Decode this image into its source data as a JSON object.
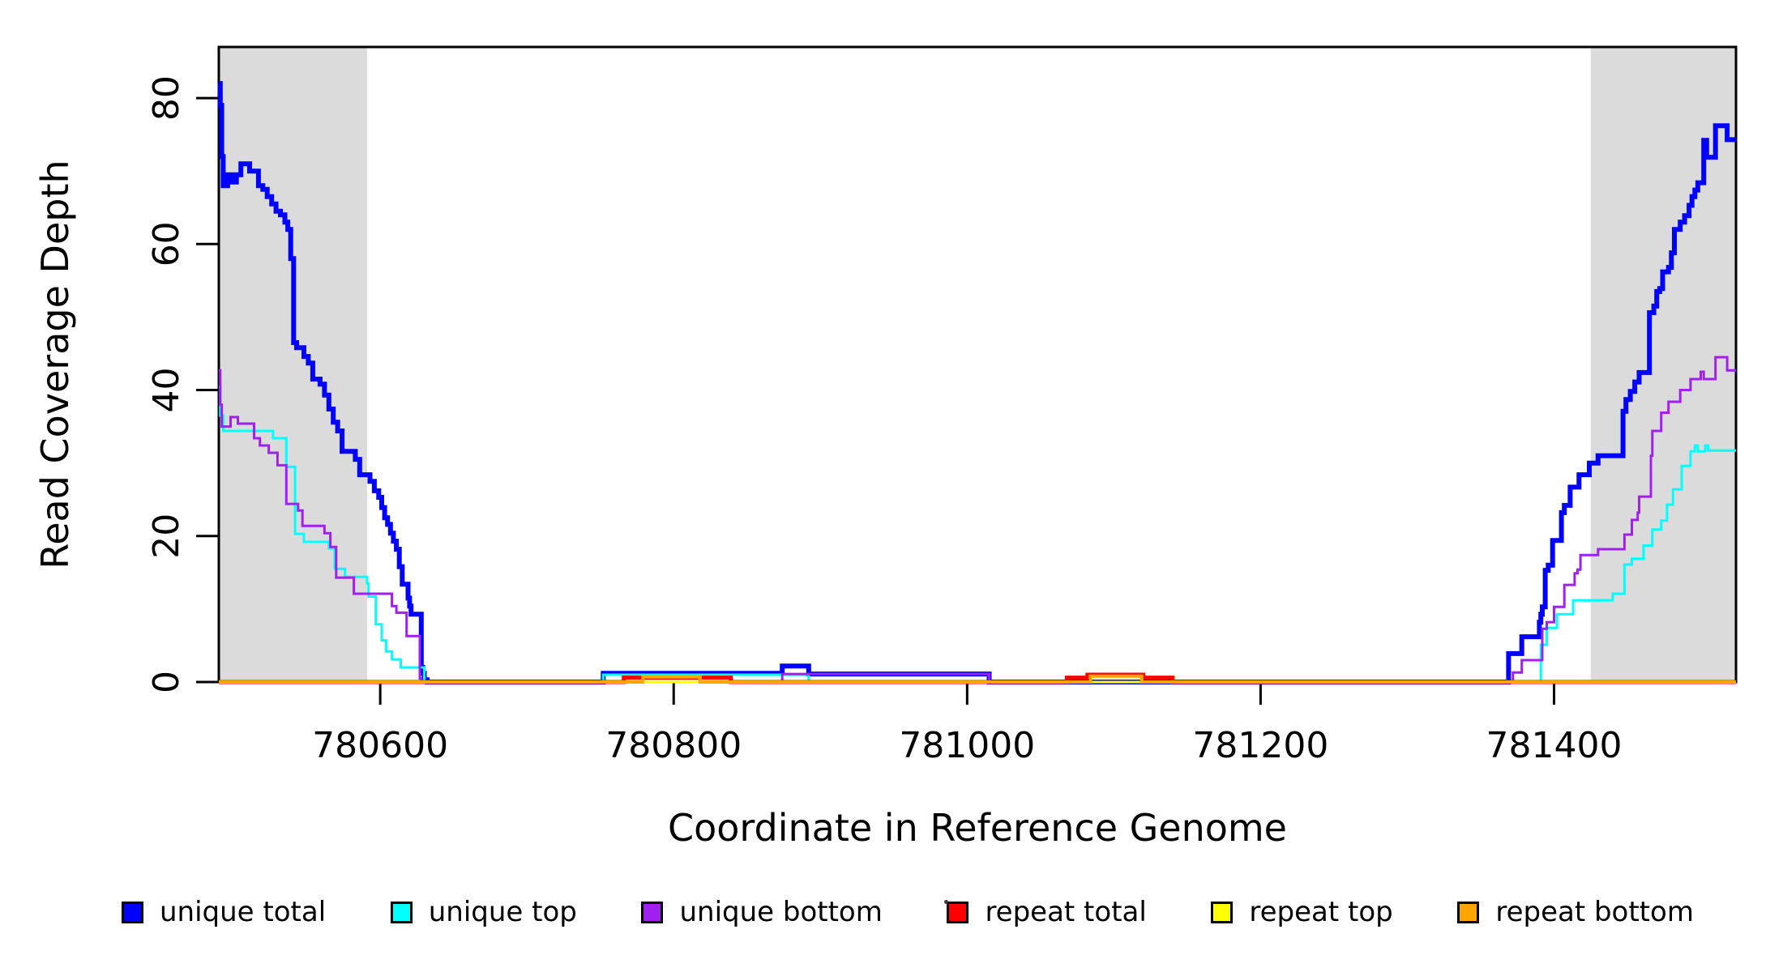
{
  "chart_data": {
    "type": "line",
    "subtype": "step-after",
    "title": "",
    "xlabel": "Coordinate in Reference Genome",
    "ylabel": "Read Coverage Depth",
    "xlim": [
      780490,
      781524
    ],
    "ylim": [
      0,
      87
    ],
    "xticks": [
      780600,
      780800,
      781000,
      781200,
      781400
    ],
    "yticks": [
      0,
      20,
      40,
      60,
      80
    ],
    "grid": false,
    "legend_position": "bottom",
    "shaded_region_color": "#DBDBDB",
    "shaded_regions": [
      {
        "name": "left-gray-band",
        "x0": 780490,
        "x1": 780591
      },
      {
        "name": "right-gray-band",
        "x0": 781425,
        "x1": 781524
      }
    ],
    "series": [
      {
        "name": "unique total",
        "color": "#0000FF",
        "width": 6,
        "points": [
          [
            780490,
            82
          ],
          [
            780491,
            79
          ],
          [
            780492,
            72
          ],
          [
            780493,
            68
          ],
          [
            780496,
            69.5
          ],
          [
            780499,
            68.5
          ],
          [
            780502,
            69.5
          ],
          [
            780505,
            71
          ],
          [
            780511,
            70
          ],
          [
            780517,
            68
          ],
          [
            780520,
            67.5
          ],
          [
            780523,
            66.5
          ],
          [
            780526,
            65.5
          ],
          [
            780529,
            64.5
          ],
          [
            780532,
            64
          ],
          [
            780535,
            63
          ],
          [
            780537,
            62
          ],
          [
            780539,
            58
          ],
          [
            780541,
            46.5
          ],
          [
            780543,
            45.8
          ],
          [
            780548,
            44.6
          ],
          [
            780551,
            43.7
          ],
          [
            780554,
            41.5
          ],
          [
            780559,
            40.8
          ],
          [
            780562,
            39.3
          ],
          [
            780565,
            37.4
          ],
          [
            780568,
            35.6
          ],
          [
            780571,
            34.4
          ],
          [
            780574,
            31.6
          ],
          [
            780583,
            30.5
          ],
          [
            780586,
            28.4
          ],
          [
            780593,
            27.5
          ],
          [
            780596,
            26.2
          ],
          [
            780599,
            25.3
          ],
          [
            780601,
            23.9
          ],
          [
            780603,
            22.5
          ],
          [
            780605,
            21.6
          ],
          [
            780607,
            20.4
          ],
          [
            780609,
            19.3
          ],
          [
            780611,
            18.2
          ],
          [
            780613,
            15.8
          ],
          [
            780615,
            13.4
          ],
          [
            780619,
            11.5
          ],
          [
            780620,
            10.4
          ],
          [
            780621,
            9.3
          ],
          [
            780628,
            2
          ],
          [
            780629,
            1.2
          ],
          [
            780630,
            0.3
          ],
          [
            780632,
            0
          ],
          [
            780752,
            1.2
          ],
          [
            780874,
            2.2
          ],
          [
            780892,
            1.1
          ],
          [
            781015,
            0
          ],
          [
            781369,
            3.9
          ],
          [
            781378,
            6.2
          ],
          [
            781390,
            8.2
          ],
          [
            781391,
            9.3
          ],
          [
            781392,
            10.3
          ],
          [
            781394,
            15.3
          ],
          [
            781396,
            16
          ],
          [
            781399,
            19.4
          ],
          [
            781405,
            23.2
          ],
          [
            781407,
            24.2
          ],
          [
            781411,
            26.7
          ],
          [
            781417,
            28.4
          ],
          [
            781424,
            30
          ],
          [
            781430,
            31
          ],
          [
            781447,
            37.1
          ],
          [
            781449,
            38.7
          ],
          [
            781452,
            39.8
          ],
          [
            781455,
            41.1
          ],
          [
            781458,
            42.4
          ],
          [
            781465,
            50.6
          ],
          [
            781468,
            51.5
          ],
          [
            781470,
            53.5
          ],
          [
            781472,
            53.9
          ],
          [
            781474,
            56.2
          ],
          [
            781478,
            56.8
          ],
          [
            781480,
            58.8
          ],
          [
            781482,
            62
          ],
          [
            781486,
            63
          ],
          [
            781489,
            63.9
          ],
          [
            781492,
            65.3
          ],
          [
            781494,
            66.5
          ],
          [
            781496,
            67.4
          ],
          [
            781498,
            68.4
          ],
          [
            781502,
            74.2
          ],
          [
            781504,
            71.9
          ],
          [
            781510,
            76.2
          ],
          [
            781518,
            74.3
          ]
        ]
      },
      {
        "name": "unique top",
        "color": "#00FFFF",
        "width": 3,
        "points": [
          [
            780490,
            40.4
          ],
          [
            780491,
            36.5
          ],
          [
            780493,
            34.4
          ],
          [
            780527,
            33.4
          ],
          [
            780536,
            29.5
          ],
          [
            780542,
            20.3
          ],
          [
            780548,
            19.2
          ],
          [
            780565,
            18.3
          ],
          [
            780569,
            15.5
          ],
          [
            780576,
            14.4
          ],
          [
            780591,
            13.5
          ],
          [
            780592,
            11.7
          ],
          [
            780597,
            7.9
          ],
          [
            780601,
            5.7
          ],
          [
            780604,
            4.2
          ],
          [
            780608,
            3.1
          ],
          [
            780614,
            2
          ],
          [
            780630,
            0
          ],
          [
            780752,
            1
          ],
          [
            780892,
            0
          ],
          [
            781391,
            5.1
          ],
          [
            781395,
            7.4
          ],
          [
            781402,
            9.3
          ],
          [
            781413,
            11.2
          ],
          [
            781440,
            12.1
          ],
          [
            781448,
            16.1
          ],
          [
            781453,
            16.9
          ],
          [
            781461,
            18.7
          ],
          [
            781467,
            20.9
          ],
          [
            781473,
            22.1
          ],
          [
            781477,
            24.3
          ],
          [
            781481,
            26.4
          ],
          [
            781487,
            29.6
          ],
          [
            781493,
            31.6
          ],
          [
            781496,
            32.4
          ],
          [
            781498,
            31.6
          ],
          [
            781503,
            32.4
          ],
          [
            781505,
            31.7
          ]
        ]
      },
      {
        "name": "unique bottom",
        "color": "#A020F0",
        "width": 3,
        "points": [
          [
            780490,
            42.7
          ],
          [
            780491,
            38
          ],
          [
            780492,
            35
          ],
          [
            780498,
            36.3
          ],
          [
            780503,
            35.4
          ],
          [
            780514,
            33.4
          ],
          [
            780518,
            32.4
          ],
          [
            780524,
            31.4
          ],
          [
            780530,
            29.7
          ],
          [
            780536,
            24.4
          ],
          [
            780544,
            23.5
          ],
          [
            780547,
            21.4
          ],
          [
            780562,
            20.4
          ],
          [
            780566,
            18.5
          ],
          [
            780570,
            14.3
          ],
          [
            780582,
            12.1
          ],
          [
            780608,
            10.4
          ],
          [
            780611,
            9.5
          ],
          [
            780618,
            6.3
          ],
          [
            780627,
            0.5
          ],
          [
            780628,
            0
          ],
          [
            780874,
            1.1
          ],
          [
            781015,
            0
          ],
          [
            781372,
            1.3
          ],
          [
            781378,
            3
          ],
          [
            781392,
            7.3
          ],
          [
            781395,
            8.2
          ],
          [
            781400,
            10.3
          ],
          [
            781407,
            13.3
          ],
          [
            781414,
            14.9
          ],
          [
            781416,
            15.4
          ],
          [
            781418,
            17.4
          ],
          [
            781430,
            18.2
          ],
          [
            781448,
            20.2
          ],
          [
            781453,
            22.2
          ],
          [
            781457,
            23.2
          ],
          [
            781458,
            25.4
          ],
          [
            781466,
            31
          ],
          [
            781467,
            34.4
          ],
          [
            781473,
            36.9
          ],
          [
            781478,
            38.4
          ],
          [
            781486,
            40
          ],
          [
            781493,
            41.5
          ],
          [
            781500,
            42.5
          ],
          [
            781502,
            41.5
          ],
          [
            781510,
            44.5
          ],
          [
            781518,
            42.7
          ]
        ]
      },
      {
        "name": "repeat total",
        "color": "#FF0000",
        "width": 5,
        "points": [
          [
            780490,
            0
          ],
          [
            780766,
            0.6
          ],
          [
            780839,
            0
          ],
          [
            781068,
            0.6
          ],
          [
            781082,
            1
          ],
          [
            781120,
            0.6
          ],
          [
            781140,
            0
          ]
        ]
      },
      {
        "name": "repeat top",
        "color": "#FFFF00",
        "width": 3,
        "points": [
          [
            780490,
            0
          ]
        ]
      },
      {
        "name": "repeat bottom",
        "color": "#FFA500",
        "width": 4,
        "points": [
          [
            780490,
            0
          ],
          [
            780779,
            0.7
          ],
          [
            780818,
            0
          ],
          [
            781084,
            0.8
          ],
          [
            781119,
            0
          ]
        ]
      }
    ]
  },
  "legend": {
    "items": [
      {
        "label": "unique total",
        "color": "#0000FF"
      },
      {
        "label": "unique top",
        "color": "#00FFFF"
      },
      {
        "label": "unique bottom",
        "color": "#A020F0"
      },
      {
        "label": "repeat total",
        "color": "#FF0000"
      },
      {
        "label": "repeat top",
        "color": "#FFFF00"
      },
      {
        "label": "repeat bottom",
        "color": "#FFA500"
      }
    ]
  }
}
